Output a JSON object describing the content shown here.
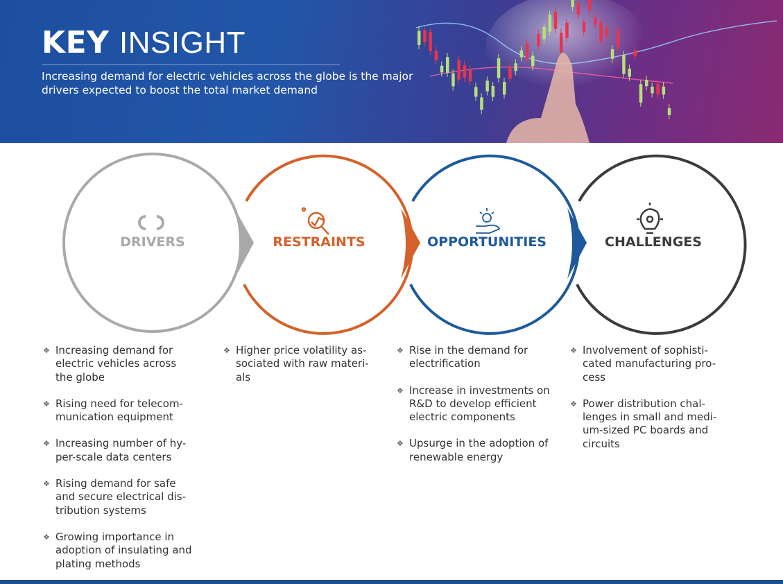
{
  "header": {
    "title_bold": "KEY",
    "title_light": "INSIGHT",
    "subtitle": "Increasing demand for electric vehicles across the globe is the major drivers expected to boost the total market demand"
  },
  "colors": {
    "drivers": "#a7a9ab",
    "restraints": "#d4622a",
    "opportunities": "#1e5a9b",
    "challenges": "#3b3b3b",
    "footer": "#1f4f8f"
  },
  "sections": [
    {
      "label": "DRIVERS",
      "icon": "cycle-arrows-icon",
      "items": [
        "Increasing demand for\nelectric vehicles across\nthe globe",
        "Rising need for telecom-\nmunication equipment",
        "Increasing number of hy-\nper-scale data centers",
        "Rising demand for safe\nand secure electrical dis-\ntribution systems",
        "Growing importance in\nadoption of insulating and\nplating methods"
      ]
    },
    {
      "label": "RESTRAINTS",
      "icon": "magnifier-chart-icon",
      "items": [
        "Higher price volatility as-\nsociated with raw materi-\nals"
      ]
    },
    {
      "label": "OPPORTUNITIES",
      "icon": "hand-idea-icon",
      "items": [
        "Rise in the demand for\nelectrification",
        "Increase in investments on\nR&D to develop efficient\nelectric components",
        "Upsurge in the adoption of\nrenewable energy"
      ]
    },
    {
      "label": "CHALLENGES",
      "icon": "lightbulb-gear-icon",
      "items": [
        "Involvement of sophisti-\ncated manufacturing pro-\ncess",
        "Power distribution chal-\nlenges in small and medi-\num-sized PC boards and\ncircuits"
      ]
    }
  ]
}
